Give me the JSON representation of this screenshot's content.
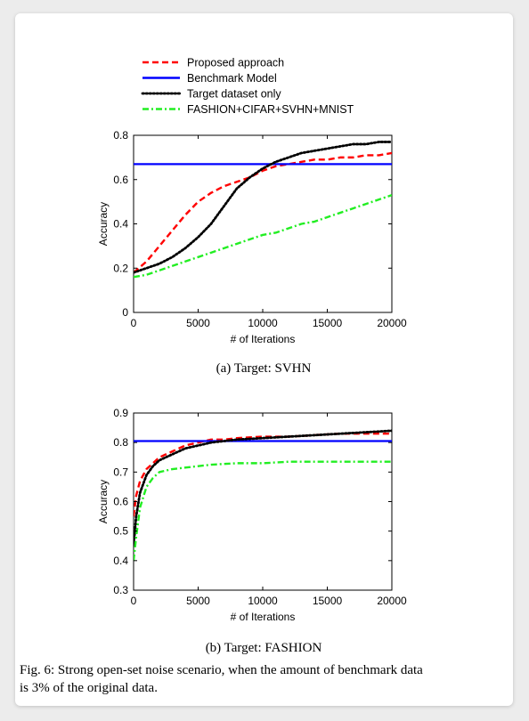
{
  "legend": [
    {
      "label": "Proposed approach",
      "color": "#ff0000",
      "style": "dashed"
    },
    {
      "label": "Benchmark Model",
      "color": "#0000ff",
      "style": "solid"
    },
    {
      "label": "Target dataset only",
      "color": "#000000",
      "style": "dotted"
    },
    {
      "label": "FASHION+CIFAR+SVHN+MNIST",
      "color": "#22ee22",
      "style": "dashdot"
    }
  ],
  "figure_caption": {
    "line1": "Fig. 6: Strong open-set noise scenario, when the amount of benchmark data",
    "line2": "is 3% of the original data."
  },
  "chart_data": [
    {
      "type": "line",
      "caption": "(a) Target: SVHN",
      "xlabel": "# of Iterations",
      "ylabel": "Accuracy",
      "xlim": [
        0,
        20000
      ],
      "ylim": [
        0,
        0.8
      ],
      "xticks": [
        0,
        5000,
        10000,
        15000,
        20000
      ],
      "yticks": [
        0,
        0.2,
        0.4,
        0.6,
        0.8
      ],
      "ytick_labels": [
        "0",
        "0.2",
        "0.4",
        "0.6",
        "0.8"
      ],
      "grid": false,
      "series": [
        {
          "name": "Proposed approach",
          "color": "#ff0000",
          "style": "dashed",
          "x": [
            0,
            1000,
            2000,
            3000,
            4000,
            5000,
            6000,
            7000,
            8000,
            9000,
            10000,
            11000,
            12000,
            13000,
            14000,
            15000,
            16000,
            17000,
            18000,
            19000,
            20000
          ],
          "y": [
            0.18,
            0.23,
            0.3,
            0.37,
            0.44,
            0.5,
            0.54,
            0.57,
            0.59,
            0.61,
            0.64,
            0.66,
            0.67,
            0.68,
            0.69,
            0.69,
            0.7,
            0.7,
            0.71,
            0.71,
            0.72
          ]
        },
        {
          "name": "Benchmark Model",
          "color": "#0000ff",
          "style": "solid",
          "x": [
            0,
            20000
          ],
          "y": [
            0.67,
            0.67
          ]
        },
        {
          "name": "Target dataset only",
          "color": "#000000",
          "style": "dotted",
          "x": [
            0,
            1000,
            2000,
            3000,
            4000,
            5000,
            6000,
            7000,
            8000,
            9000,
            10000,
            11000,
            12000,
            13000,
            14000,
            15000,
            16000,
            17000,
            18000,
            19000,
            20000
          ],
          "y": [
            0.18,
            0.2,
            0.22,
            0.25,
            0.29,
            0.34,
            0.4,
            0.48,
            0.56,
            0.61,
            0.65,
            0.68,
            0.7,
            0.72,
            0.73,
            0.74,
            0.75,
            0.76,
            0.76,
            0.77,
            0.77
          ]
        },
        {
          "name": "FASHION+CIFAR+SVHN+MNIST",
          "color": "#22ee22",
          "style": "dashdot",
          "x": [
            0,
            1000,
            2000,
            3000,
            4000,
            5000,
            6000,
            7000,
            8000,
            9000,
            10000,
            11000,
            12000,
            13000,
            14000,
            15000,
            16000,
            17000,
            18000,
            19000,
            20000
          ],
          "y": [
            0.16,
            0.17,
            0.19,
            0.21,
            0.23,
            0.25,
            0.27,
            0.29,
            0.31,
            0.33,
            0.35,
            0.36,
            0.38,
            0.4,
            0.41,
            0.43,
            0.45,
            0.47,
            0.49,
            0.51,
            0.53
          ]
        }
      ]
    },
    {
      "type": "line",
      "caption": "(b) Target: FASHION",
      "xlabel": "# of Iterations",
      "ylabel": "Accuracy",
      "xlim": [
        0,
        20000
      ],
      "ylim": [
        0.3,
        0.9
      ],
      "xticks": [
        0,
        5000,
        10000,
        15000,
        20000
      ],
      "yticks": [
        0.3,
        0.4,
        0.5,
        0.6,
        0.7,
        0.8,
        0.9
      ],
      "ytick_labels": [
        "0.3",
        "0.4",
        "0.5",
        "0.6",
        "0.7",
        "0.8",
        "0.9"
      ],
      "grid": false,
      "series": [
        {
          "name": "Proposed approach",
          "color": "#ff0000",
          "style": "dashed",
          "x": [
            0,
            200,
            500,
            1000,
            1500,
            2000,
            3000,
            4000,
            5000,
            6000,
            7000,
            8000,
            10000,
            12000,
            14000,
            16000,
            18000,
            20000
          ],
          "y": [
            0.55,
            0.62,
            0.67,
            0.71,
            0.73,
            0.75,
            0.77,
            0.79,
            0.8,
            0.81,
            0.81,
            0.815,
            0.82,
            0.82,
            0.825,
            0.83,
            0.83,
            0.83
          ]
        },
        {
          "name": "Benchmark Model",
          "color": "#0000ff",
          "style": "solid",
          "x": [
            0,
            20000
          ],
          "y": [
            0.805,
            0.805
          ]
        },
        {
          "name": "Target dataset only",
          "color": "#000000",
          "style": "dotted",
          "x": [
            0,
            200,
            500,
            1000,
            1500,
            2000,
            3000,
            4000,
            5000,
            6000,
            7000,
            8000,
            10000,
            12000,
            14000,
            16000,
            18000,
            20000
          ],
          "y": [
            0.45,
            0.55,
            0.63,
            0.69,
            0.72,
            0.74,
            0.76,
            0.78,
            0.79,
            0.8,
            0.805,
            0.81,
            0.815,
            0.82,
            0.825,
            0.83,
            0.835,
            0.84
          ]
        },
        {
          "name": "FASHION+CIFAR+SVHN+MNIST",
          "color": "#22ee22",
          "style": "dashdot",
          "x": [
            0,
            200,
            500,
            1000,
            1500,
            2000,
            3000,
            4000,
            5000,
            6000,
            8000,
            10000,
            12000,
            14000,
            16000,
            18000,
            20000
          ],
          "y": [
            0.4,
            0.48,
            0.58,
            0.65,
            0.68,
            0.7,
            0.71,
            0.715,
            0.72,
            0.725,
            0.73,
            0.73,
            0.735,
            0.735,
            0.735,
            0.735,
            0.735
          ]
        }
      ]
    }
  ]
}
